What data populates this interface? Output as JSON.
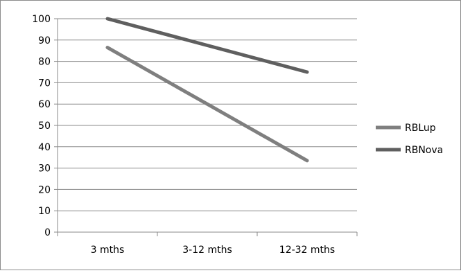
{
  "chart_data": {
    "type": "line",
    "categories": [
      "3 mths",
      "3-12 mths",
      "12-32 mths"
    ],
    "series": [
      {
        "name": "RBLup",
        "values": [
          86.5,
          60,
          33.5
        ],
        "color": "#7f7f7f"
      },
      {
        "name": "RBNova",
        "values": [
          100,
          87.5,
          75
        ],
        "color": "#5f5f5f"
      }
    ],
    "ylim": [
      0,
      100
    ],
    "yticks": [
      0,
      10,
      20,
      30,
      40,
      50,
      60,
      70,
      80,
      90,
      100
    ],
    "grid": true,
    "legend": "right",
    "title": "",
    "xlabel": "",
    "ylabel": ""
  }
}
